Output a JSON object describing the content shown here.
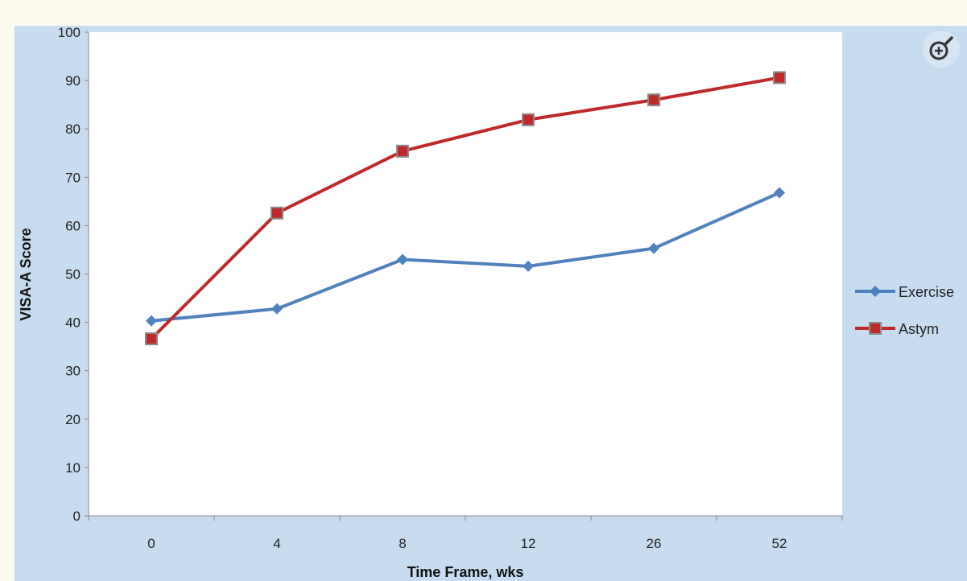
{
  "chart_data": {
    "type": "line",
    "title": "",
    "xlabel": "Time Frame, wks",
    "ylabel": "VISA-A Score",
    "categories": [
      "0",
      "4",
      "8",
      "12",
      "26",
      "52"
    ],
    "ylim": [
      0,
      100
    ],
    "yticks": [
      "0",
      "10",
      "20",
      "30",
      "40",
      "50",
      "60",
      "70",
      "80",
      "90",
      "100"
    ],
    "grid": false,
    "legend_position": "right",
    "series": [
      {
        "name": "Exercise",
        "values": [
          40.3,
          42.8,
          53.0,
          51.6,
          55.3,
          66.8
        ],
        "color": "#4f81bd",
        "marker": "diamond"
      },
      {
        "name": "Astym",
        "values": [
          36.6,
          62.6,
          75.4,
          81.9,
          86.0,
          90.6
        ],
        "color": "#be2a2a",
        "marker": "square"
      }
    ]
  },
  "toolbar": {
    "zoom_icon": "zoom-in-icon"
  }
}
